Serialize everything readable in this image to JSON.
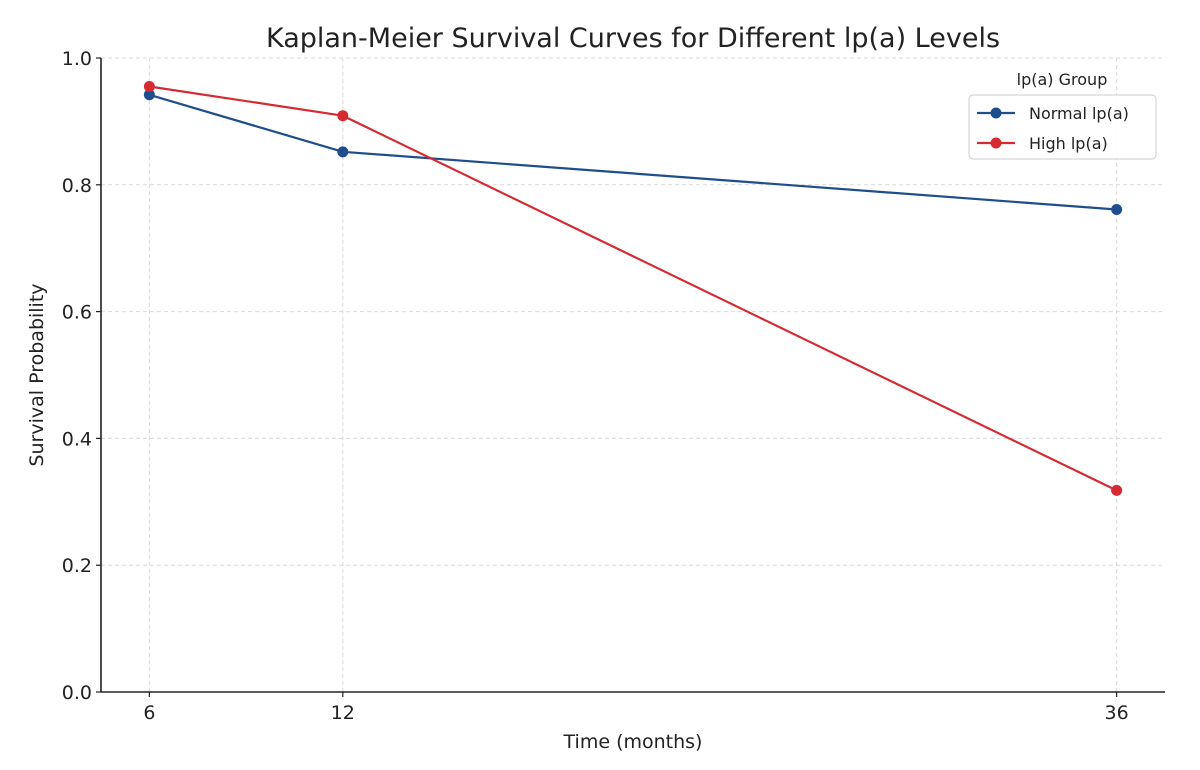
{
  "chart_data": {
    "type": "line",
    "title": "Kaplan-Meier Survival Curves for Different lp(a) Levels",
    "xlabel": "Time (months)",
    "ylabel": "Survival Probability",
    "x": [
      6,
      12,
      36
    ],
    "x_tick_labels": [
      "6",
      "12",
      "36"
    ],
    "xlim": [
      4.5,
      37.5
    ],
    "ylim": [
      0.0,
      1.0
    ],
    "y_ticks": [
      0.0,
      0.2,
      0.4,
      0.6,
      0.8,
      1.0
    ],
    "y_tick_labels": [
      "0.0",
      "0.2",
      "0.4",
      "0.6",
      "0.8",
      "1.0"
    ],
    "grid": true,
    "legend": {
      "title": "lp(a) Group",
      "placement": "top-right"
    },
    "series": [
      {
        "name": "Normal lp(a)",
        "color": "#1f4e8c",
        "values": [
          0.942,
          0.852,
          0.761
        ]
      },
      {
        "name": "High lp(a)",
        "color": "#d62a33",
        "values": [
          0.955,
          0.909,
          0.318
        ]
      }
    ]
  }
}
